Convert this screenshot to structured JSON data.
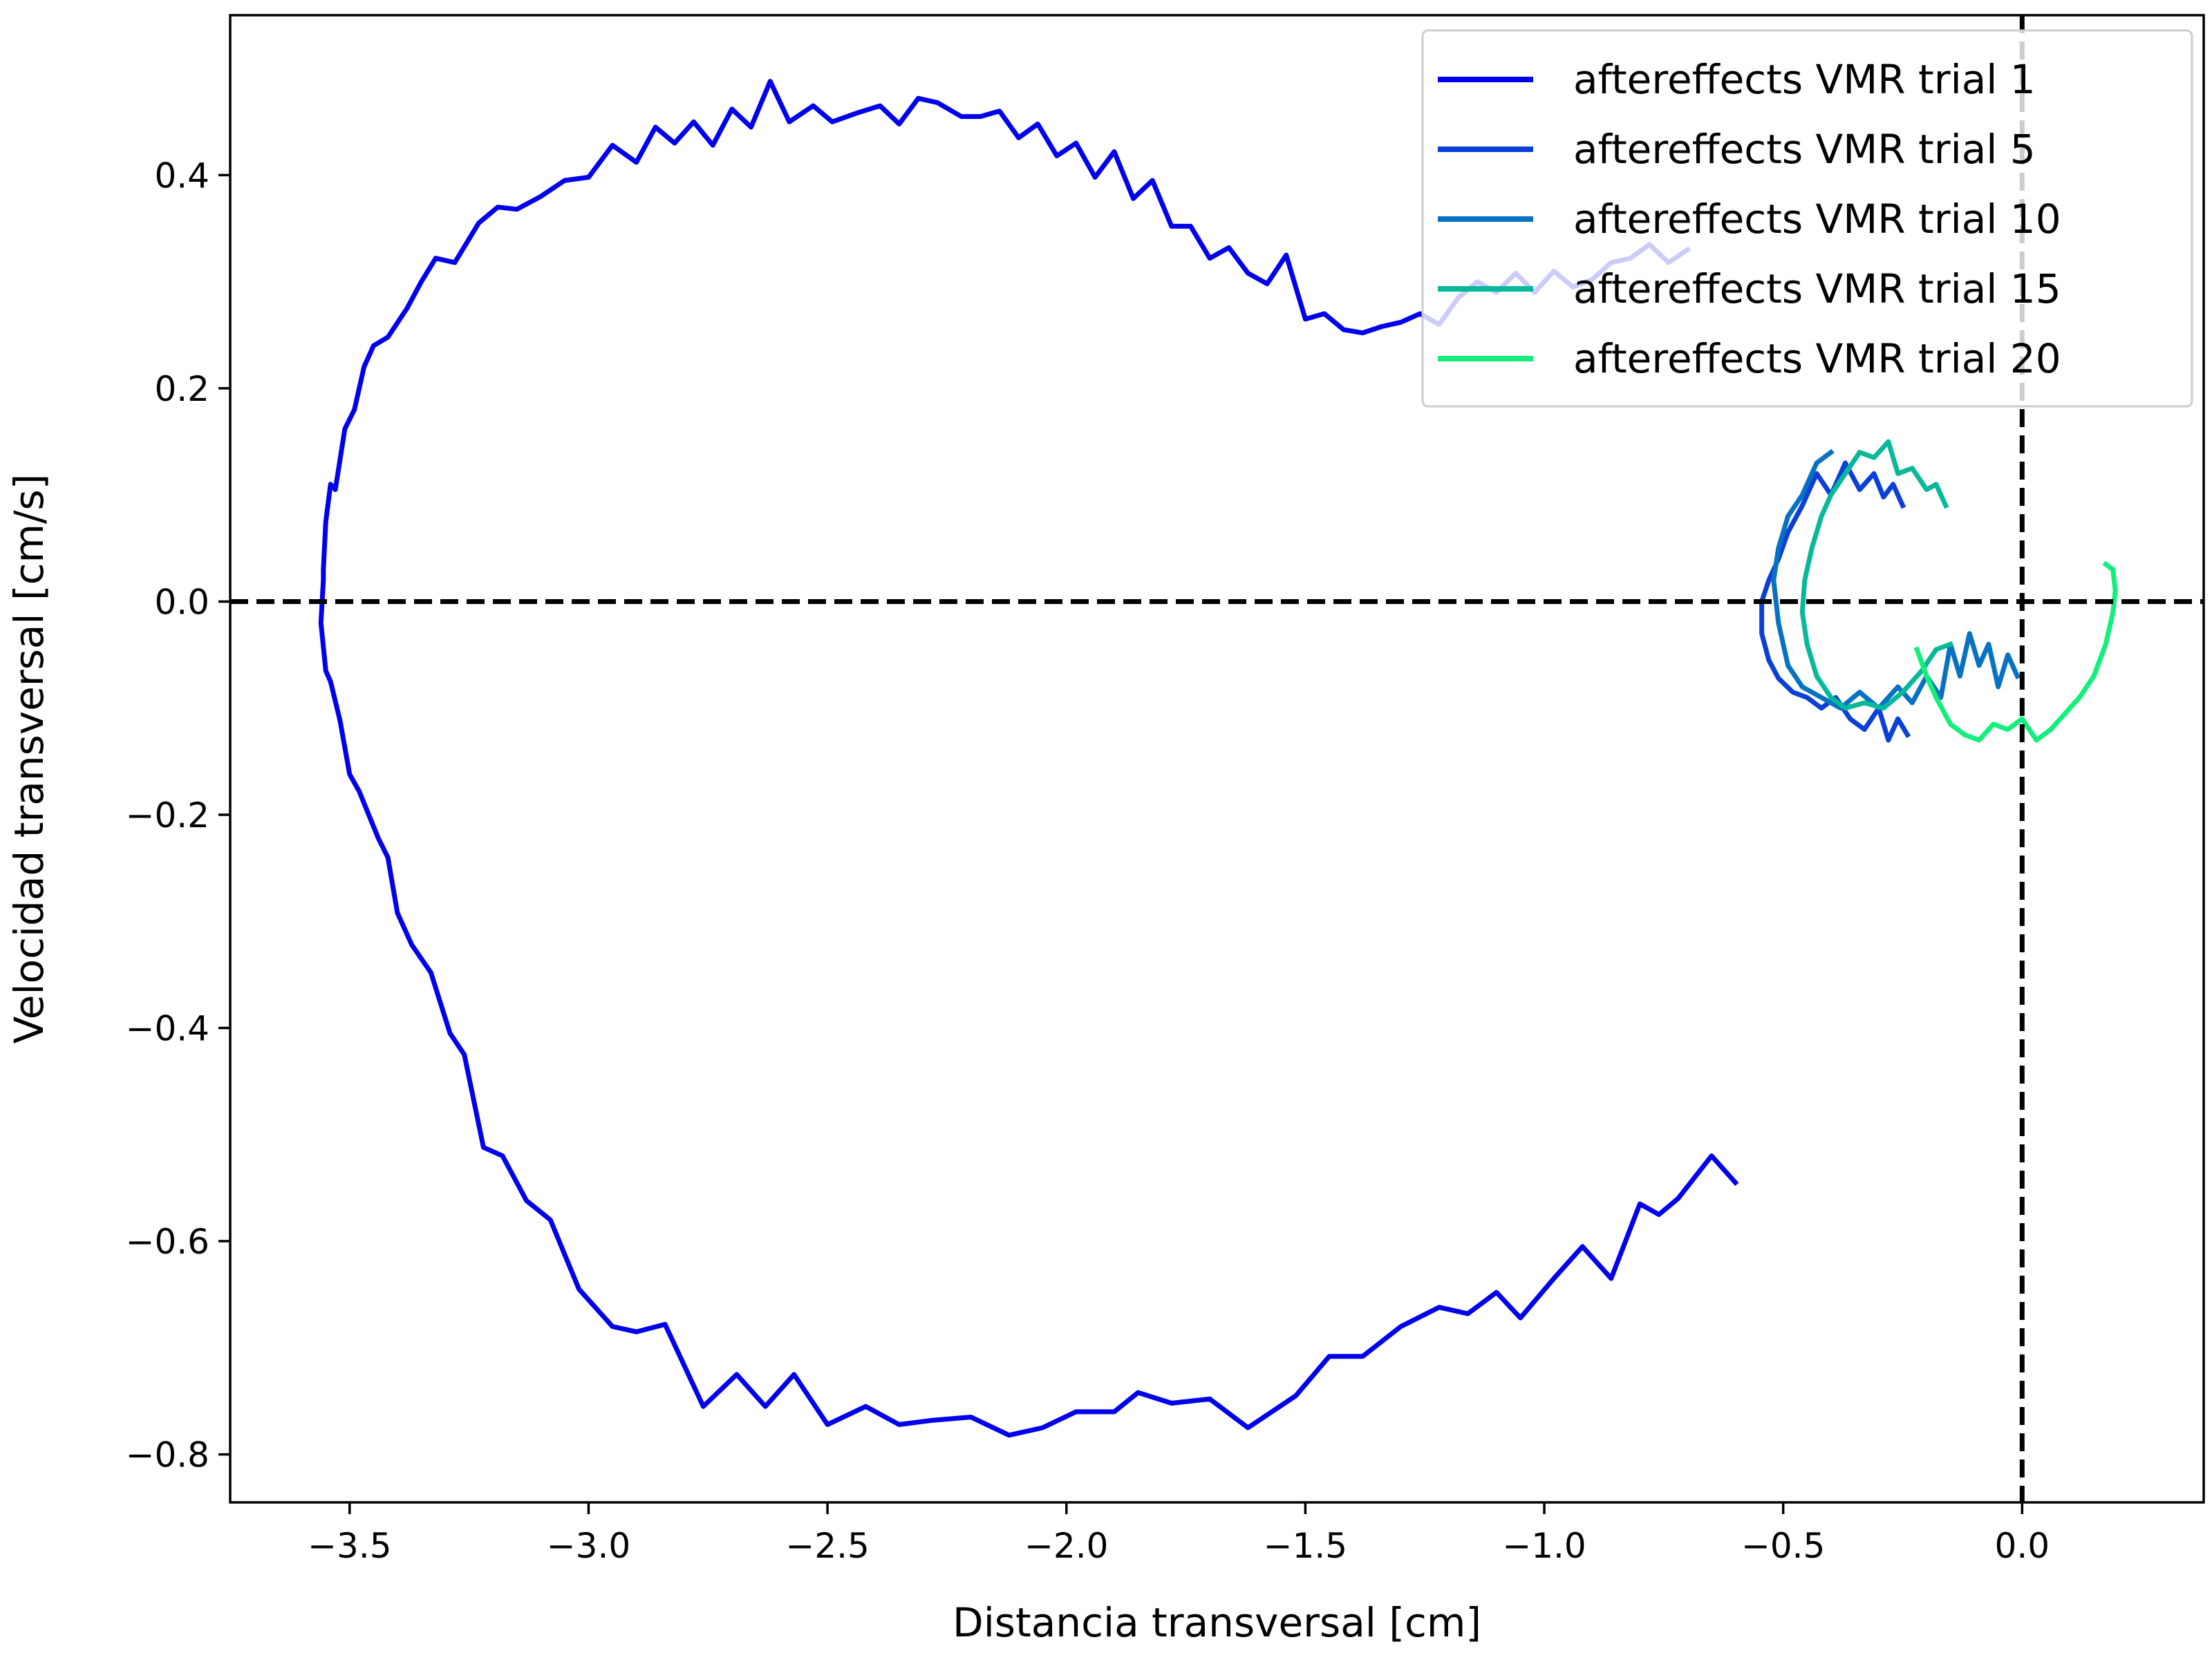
{
  "chart_data": {
    "type": "line",
    "title": "",
    "xlabel": "Distancia transversal [cm]",
    "ylabel": "Velocidad transversal [cm/s]",
    "xlim": [
      -3.75,
      0.38
    ],
    "ylim": [
      -0.845,
      0.55
    ],
    "xticks": [
      {
        "value": -3.5,
        "label": "−3.5"
      },
      {
        "value": -3.0,
        "label": "−3.0"
      },
      {
        "value": -2.5,
        "label": "−2.5"
      },
      {
        "value": -2.0,
        "label": "−2.0"
      },
      {
        "value": -1.5,
        "label": "−1.5"
      },
      {
        "value": -1.0,
        "label": "−1.0"
      },
      {
        "value": -0.5,
        "label": "−0.5"
      },
      {
        "value": 0.0,
        "label": "0.0"
      }
    ],
    "yticks": [
      {
        "value": 0.4,
        "label": "0.4"
      },
      {
        "value": 0.2,
        "label": "0.2"
      },
      {
        "value": 0.0,
        "label": "0.0"
      },
      {
        "value": -0.2,
        "label": "−0.2"
      },
      {
        "value": -0.4,
        "label": "−0.4"
      },
      {
        "value": -0.6,
        "label": "−0.6"
      },
      {
        "value": -0.8,
        "label": "−0.8"
      }
    ],
    "reference_lines": {
      "x": 0.0,
      "y": 0.0,
      "style": "dashed",
      "color": "#000000"
    },
    "legend_position": "top-right",
    "grid": false,
    "series": [
      {
        "name": "aftereffects VMR trial 1",
        "color": "#0000ee",
        "points": [
          [
            -0.6,
            -0.545
          ],
          [
            -0.65,
            -0.52
          ],
          [
            -0.72,
            -0.56
          ],
          [
            -0.76,
            -0.575
          ],
          [
            -0.8,
            -0.565
          ],
          [
            -0.86,
            -0.635
          ],
          [
            -0.92,
            -0.605
          ],
          [
            -0.98,
            -0.635
          ],
          [
            -1.05,
            -0.672
          ],
          [
            -1.1,
            -0.648
          ],
          [
            -1.16,
            -0.668
          ],
          [
            -1.22,
            -0.662
          ],
          [
            -1.3,
            -0.68
          ],
          [
            -1.38,
            -0.708
          ],
          [
            -1.45,
            -0.708
          ],
          [
            -1.52,
            -0.745
          ],
          [
            -1.62,
            -0.775
          ],
          [
            -1.7,
            -0.748
          ],
          [
            -1.78,
            -0.752
          ],
          [
            -1.85,
            -0.742
          ],
          [
            -1.9,
            -0.76
          ],
          [
            -1.98,
            -0.76
          ],
          [
            -2.05,
            -0.775
          ],
          [
            -2.12,
            -0.782
          ],
          [
            -2.2,
            -0.765
          ],
          [
            -2.28,
            -0.768
          ],
          [
            -2.35,
            -0.772
          ],
          [
            -2.42,
            -0.755
          ],
          [
            -2.5,
            -0.772
          ],
          [
            -2.57,
            -0.725
          ],
          [
            -2.63,
            -0.755
          ],
          [
            -2.69,
            -0.725
          ],
          [
            -2.76,
            -0.755
          ],
          [
            -2.84,
            -0.678
          ],
          [
            -2.9,
            -0.685
          ],
          [
            -2.95,
            -0.68
          ],
          [
            -3.02,
            -0.645
          ],
          [
            -3.08,
            -0.58
          ],
          [
            -3.13,
            -0.562
          ],
          [
            -3.18,
            -0.52
          ],
          [
            -3.22,
            -0.512
          ],
          [
            -3.26,
            -0.425
          ],
          [
            -3.29,
            -0.405
          ],
          [
            -3.33,
            -0.348
          ],
          [
            -3.37,
            -0.322
          ],
          [
            -3.4,
            -0.292
          ],
          [
            -3.42,
            -0.24
          ],
          [
            -3.44,
            -0.222
          ],
          [
            -3.48,
            -0.178
          ],
          [
            -3.5,
            -0.162
          ],
          [
            -3.52,
            -0.112
          ],
          [
            -3.54,
            -0.075
          ],
          [
            -3.55,
            -0.065
          ],
          [
            -3.56,
            -0.02
          ],
          [
            -3.555,
            0.02
          ],
          [
            -3.555,
            0.03
          ],
          [
            -3.55,
            0.075
          ],
          [
            -3.54,
            0.11
          ],
          [
            -3.53,
            0.105
          ],
          [
            -3.51,
            0.162
          ],
          [
            -3.49,
            0.18
          ],
          [
            -3.47,
            0.22
          ],
          [
            -3.45,
            0.24
          ],
          [
            -3.42,
            0.248
          ],
          [
            -3.38,
            0.275
          ],
          [
            -3.35,
            0.3
          ],
          [
            -3.32,
            0.322
          ],
          [
            -3.28,
            0.318
          ],
          [
            -3.23,
            0.355
          ],
          [
            -3.19,
            0.37
          ],
          [
            -3.15,
            0.368
          ],
          [
            -3.1,
            0.38
          ],
          [
            -3.05,
            0.395
          ],
          [
            -3.0,
            0.398
          ],
          [
            -2.95,
            0.428
          ],
          [
            -2.9,
            0.412
          ],
          [
            -2.86,
            0.445
          ],
          [
            -2.82,
            0.43
          ],
          [
            -2.78,
            0.45
          ],
          [
            -2.74,
            0.428
          ],
          [
            -2.7,
            0.462
          ],
          [
            -2.66,
            0.445
          ],
          [
            -2.62,
            0.488
          ],
          [
            -2.58,
            0.45
          ],
          [
            -2.53,
            0.465
          ],
          [
            -2.49,
            0.45
          ],
          [
            -2.44,
            0.458
          ],
          [
            -2.39,
            0.465
          ],
          [
            -2.35,
            0.448
          ],
          [
            -2.31,
            0.472
          ],
          [
            -2.27,
            0.468
          ],
          [
            -2.22,
            0.455
          ],
          [
            -2.18,
            0.455
          ],
          [
            -2.14,
            0.46
          ],
          [
            -2.1,
            0.435
          ],
          [
            -2.06,
            0.448
          ],
          [
            -2.02,
            0.418
          ],
          [
            -1.98,
            0.43
          ],
          [
            -1.94,
            0.398
          ],
          [
            -1.9,
            0.422
          ],
          [
            -1.86,
            0.378
          ],
          [
            -1.82,
            0.395
          ],
          [
            -1.78,
            0.352
          ],
          [
            -1.74,
            0.352
          ],
          [
            -1.7,
            0.322
          ],
          [
            -1.66,
            0.332
          ],
          [
            -1.62,
            0.308
          ],
          [
            -1.58,
            0.298
          ],
          [
            -1.54,
            0.325
          ],
          [
            -1.5,
            0.265
          ],
          [
            -1.46,
            0.27
          ],
          [
            -1.42,
            0.255
          ],
          [
            -1.38,
            0.252
          ],
          [
            -1.34,
            0.258
          ],
          [
            -1.3,
            0.262
          ],
          [
            -1.26,
            0.27
          ],
          [
            -1.22,
            0.26
          ],
          [
            -1.18,
            0.285
          ],
          [
            -1.14,
            0.3
          ],
          [
            -1.1,
            0.29
          ],
          [
            -1.06,
            0.308
          ],
          [
            -1.02,
            0.29
          ],
          [
            -0.98,
            0.31
          ],
          [
            -0.94,
            0.295
          ],
          [
            -0.9,
            0.302
          ],
          [
            -0.86,
            0.318
          ],
          [
            -0.82,
            0.322
          ],
          [
            -0.78,
            0.335
          ],
          [
            -0.74,
            0.318
          ],
          [
            -0.7,
            0.33
          ]
        ]
      },
      {
        "name": "aftereffects VMR trial 5",
        "color": "#0a3fd8",
        "points": [
          [
            -0.25,
            0.09
          ],
          [
            -0.27,
            0.11
          ],
          [
            -0.29,
            0.098
          ],
          [
            -0.31,
            0.12
          ],
          [
            -0.34,
            0.105
          ],
          [
            -0.37,
            0.13
          ],
          [
            -0.4,
            0.1
          ],
          [
            -0.43,
            0.12
          ],
          [
            -0.46,
            0.09
          ],
          [
            -0.49,
            0.065
          ],
          [
            -0.51,
            0.04
          ],
          [
            -0.53,
            0.02
          ],
          [
            -0.545,
            0.0
          ],
          [
            -0.545,
            -0.03
          ],
          [
            -0.53,
            -0.055
          ],
          [
            -0.51,
            -0.072
          ],
          [
            -0.48,
            -0.085
          ],
          [
            -0.45,
            -0.09
          ],
          [
            -0.42,
            -0.1
          ],
          [
            -0.39,
            -0.09
          ],
          [
            -0.36,
            -0.11
          ],
          [
            -0.33,
            -0.12
          ],
          [
            -0.3,
            -0.1
          ],
          [
            -0.28,
            -0.13
          ],
          [
            -0.26,
            -0.11
          ],
          [
            -0.24,
            -0.125
          ]
        ]
      },
      {
        "name": "aftereffects VMR trial 10",
        "color": "#0872c2",
        "points": [
          [
            -0.01,
            -0.07
          ],
          [
            -0.03,
            -0.05
          ],
          [
            -0.05,
            -0.08
          ],
          [
            -0.07,
            -0.04
          ],
          [
            -0.09,
            -0.06
          ],
          [
            -0.11,
            -0.03
          ],
          [
            -0.13,
            -0.07
          ],
          [
            -0.15,
            -0.04
          ],
          [
            -0.17,
            -0.09
          ],
          [
            -0.2,
            -0.07
          ],
          [
            -0.23,
            -0.095
          ],
          [
            -0.26,
            -0.08
          ],
          [
            -0.3,
            -0.1
          ],
          [
            -0.34,
            -0.085
          ],
          [
            -0.38,
            -0.1
          ],
          [
            -0.42,
            -0.09
          ],
          [
            -0.46,
            -0.08
          ],
          [
            -0.49,
            -0.06
          ],
          [
            -0.51,
            -0.02
          ],
          [
            -0.52,
            0.02
          ],
          [
            -0.51,
            0.05
          ],
          [
            -0.49,
            0.08
          ],
          [
            -0.46,
            0.1
          ],
          [
            -0.43,
            0.13
          ],
          [
            -0.4,
            0.14
          ]
        ]
      },
      {
        "name": "aftereffects VMR trial 15",
        "color": "#07b89a",
        "points": [
          [
            -0.16,
            0.09
          ],
          [
            -0.18,
            0.11
          ],
          [
            -0.2,
            0.105
          ],
          [
            -0.23,
            0.125
          ],
          [
            -0.26,
            0.12
          ],
          [
            -0.28,
            0.15
          ],
          [
            -0.31,
            0.135
          ],
          [
            -0.34,
            0.14
          ],
          [
            -0.37,
            0.12
          ],
          [
            -0.4,
            0.1
          ],
          [
            -0.42,
            0.08
          ],
          [
            -0.44,
            0.05
          ],
          [
            -0.455,
            0.02
          ],
          [
            -0.46,
            -0.01
          ],
          [
            -0.45,
            -0.04
          ],
          [
            -0.43,
            -0.07
          ],
          [
            -0.4,
            -0.09
          ],
          [
            -0.37,
            -0.1
          ],
          [
            -0.33,
            -0.095
          ],
          [
            -0.29,
            -0.1
          ],
          [
            -0.25,
            -0.085
          ],
          [
            -0.21,
            -0.065
          ],
          [
            -0.18,
            -0.045
          ],
          [
            -0.15,
            -0.04
          ]
        ]
      },
      {
        "name": "aftereffects VMR trial 20",
        "color": "#10f07a",
        "points": [
          [
            -0.22,
            -0.045
          ],
          [
            -0.2,
            -0.07
          ],
          [
            -0.18,
            -0.09
          ],
          [
            -0.15,
            -0.115
          ],
          [
            -0.12,
            -0.125
          ],
          [
            -0.09,
            -0.13
          ],
          [
            -0.06,
            -0.115
          ],
          [
            -0.03,
            -0.12
          ],
          [
            0.0,
            -0.11
          ],
          [
            0.03,
            -0.13
          ],
          [
            0.06,
            -0.12
          ],
          [
            0.09,
            -0.105
          ],
          [
            0.12,
            -0.09
          ],
          [
            0.15,
            -0.07
          ],
          [
            0.175,
            -0.04
          ],
          [
            0.19,
            -0.01
          ],
          [
            0.195,
            0.01
          ],
          [
            0.19,
            0.03
          ],
          [
            0.175,
            0.035
          ]
        ]
      }
    ]
  }
}
